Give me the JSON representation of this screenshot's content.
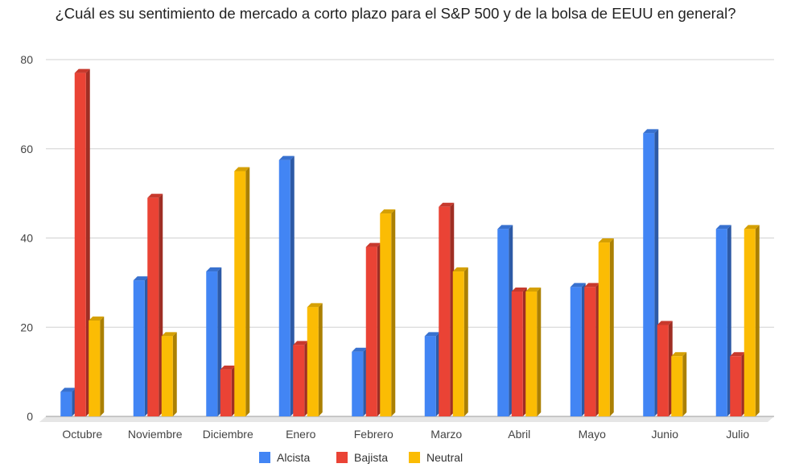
{
  "chart_data": {
    "type": "bar",
    "title": "¿Cuál es su sentimiento de mercado a corto plazo para el S&P 500 y de la bolsa de EEUU en general?",
    "xlabel": "",
    "ylabel": "",
    "ylim": [
      0,
      80
    ],
    "yticks": [
      0,
      20,
      40,
      60,
      80
    ],
    "grid": true,
    "legend_position": "bottom",
    "style": "3d",
    "categories": [
      "Octubre",
      "Noviembre",
      "Diciembre",
      "Enero",
      "Febrero",
      "Marzo",
      "Abril",
      "Mayo",
      "Junio",
      "Julio"
    ],
    "series": [
      {
        "name": "Alcista",
        "color": "#4285f4",
        "values": [
          5.5,
          30.5,
          32.5,
          57.5,
          14.5,
          18,
          42,
          29,
          63.5,
          42
        ]
      },
      {
        "name": "Bajista",
        "color": "#ea4335",
        "values": [
          77,
          49,
          10.5,
          16,
          38,
          47,
          28,
          29,
          20.5,
          13.5
        ]
      },
      {
        "name": "Neutral",
        "color": "#fbbc04",
        "values": [
          21.5,
          18,
          55,
          24.5,
          45.5,
          32.5,
          28,
          39,
          13.5,
          42
        ]
      }
    ]
  }
}
